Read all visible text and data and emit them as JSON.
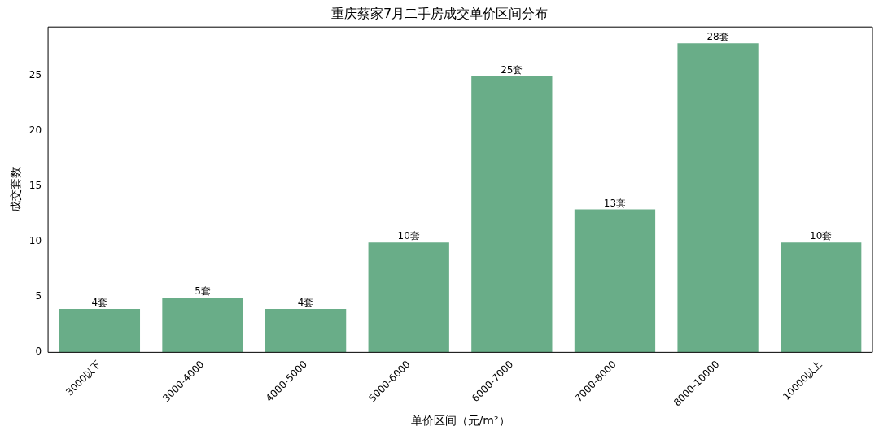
{
  "chart_data": {
    "type": "bar",
    "title": "重庆蔡家7月二手房成交单价区间分布",
    "xlabel": "单价区间（元/m²）",
    "ylabel": "成交套数",
    "categories": [
      "3000以下",
      "3000-4000",
      "4000-5000",
      "5000-6000",
      "6000-7000",
      "7000-8000",
      "8000-10000",
      "10000以上"
    ],
    "values": [
      4,
      5,
      4,
      10,
      25,
      13,
      28,
      10
    ],
    "value_labels": [
      "4套",
      "5套",
      "4套",
      "10套",
      "25套",
      "13套",
      "28套",
      "10套"
    ],
    "color": "#69ad88",
    "ylim": [
      0,
      29.4
    ],
    "yticks": [
      0,
      5,
      10,
      15,
      20,
      25
    ],
    "grid": false,
    "legend": false
  }
}
